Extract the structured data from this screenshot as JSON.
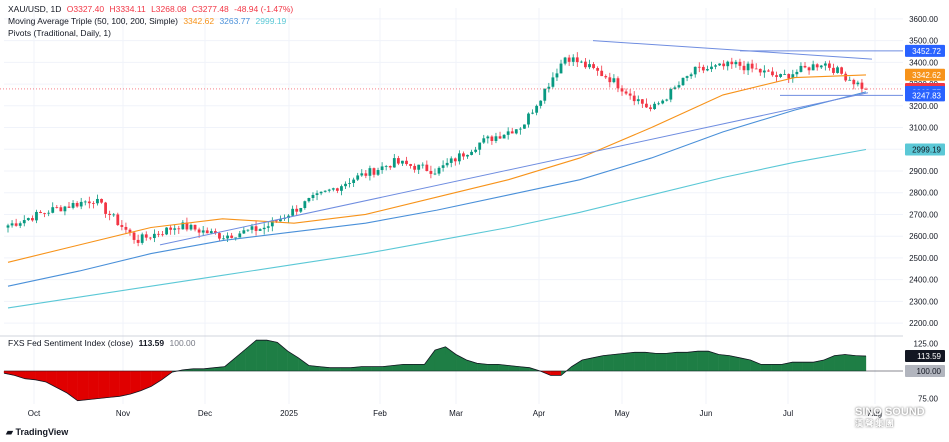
{
  "legend": {
    "symbol": "XAU/USD, 1D",
    "open": "O3327.40",
    "high": "H3334.11",
    "low": "L3268.08",
    "close": "C3277.48",
    "change": "-48.94 (-1.47%)",
    "ma_label": "Moving Average Triple (50, 100, 200, Simple)",
    "ma50": "3342.62",
    "ma100": "3263.77",
    "ma200": "2999.19",
    "pivots": "Pivots (Traditional, Daily, 1)",
    "sentiment_label": "FXS Fed Sentiment Index (close)",
    "sentiment_value": "113.59",
    "sentiment_base": "100.00"
  },
  "branding": {
    "tradingview": "TradingView",
    "watermark": "SINO SOUND",
    "watermark_sub": "漢 聲 集 團"
  },
  "colors": {
    "up": "#089981",
    "down": "#f23645",
    "ma50": "#f7931a",
    "ma100": "#4a90d9",
    "ma200": "#5bc8d6",
    "trend": "#6f8de0",
    "sentiment_pos": "#1e7e45",
    "sentiment_neg": "#e00000"
  },
  "chart_data": [
    {
      "type": "candlestick",
      "symbol": "XAU/USD",
      "timeframe": "1D",
      "x_tick_labels": [
        "Oct",
        "Nov",
        "Dec",
        "2025",
        "Feb",
        "Mar",
        "Apr",
        "May",
        "Jun",
        "Jul",
        "Aug"
      ],
      "y_ticks": [
        2200,
        2300,
        2400,
        2500,
        2600,
        2700,
        2800,
        2900,
        3000,
        3100,
        3200,
        3300,
        3400,
        3500,
        3600
      ],
      "ylim": [
        2150,
        3650
      ],
      "close_anchors": [
        {
          "month": "Oct",
          "value": 2650
        },
        {
          "month": "Oct",
          "value": 2720
        },
        {
          "month": "Nov",
          "value": 2770
        },
        {
          "month": "Nov",
          "value": 2580
        },
        {
          "month": "Dec",
          "value": 2650
        },
        {
          "month": "Dec",
          "value": 2600
        },
        {
          "month": "2025",
          "value": 2640
        },
        {
          "month": "2025",
          "value": 2760
        },
        {
          "month": "Feb",
          "value": 2860
        },
        {
          "month": "Feb",
          "value": 2940
        },
        {
          "month": "Mar",
          "value": 2900
        },
        {
          "month": "Mar",
          "value": 3030
        },
        {
          "month": "Apr",
          "value": 3110
        },
        {
          "month": "Apr",
          "value": 3430
        },
        {
          "month": "May",
          "value": 3330
        },
        {
          "month": "May",
          "value": 3180
        },
        {
          "month": "Jun",
          "value": 3360
        },
        {
          "month": "Jun",
          "value": 3390
        },
        {
          "month": "Jul",
          "value": 3330
        },
        {
          "month": "Jul",
          "value": 3400
        },
        {
          "month": "Aug",
          "value": 3277
        }
      ],
      "moving_averages": [
        {
          "name": "MA 50",
          "last": 3342.62,
          "points": [
            2480,
            2560,
            2640,
            2680,
            2660,
            2700,
            2780,
            2860,
            2960,
            3100,
            3250,
            3330,
            3342
          ]
        },
        {
          "name": "MA 100",
          "last": 3263.77,
          "points": [
            2370,
            2440,
            2520,
            2580,
            2620,
            2660,
            2720,
            2790,
            2860,
            2960,
            3080,
            3180,
            3264
          ]
        },
        {
          "name": "MA 200",
          "last": 2999.19,
          "points": [
            2270,
            2320,
            2370,
            2420,
            2470,
            2520,
            2580,
            2640,
            2710,
            2790,
            2870,
            2940,
            2999
          ]
        }
      ],
      "trendlines": [
        {
          "name": "upper",
          "from": 3500,
          "to": 3415
        },
        {
          "name": "lower",
          "from": 2560,
          "to": 3260
        }
      ],
      "horizontal_levels": [
        3452.72,
        3247.83,
        3277.48
      ],
      "price_labels": [
        {
          "text": "3452.72",
          "value": 3452.72,
          "style": "blue"
        },
        {
          "text": "3342.62",
          "value": 3342.62,
          "style": "orange"
        },
        {
          "text": "3277.48",
          "value": 3277.48,
          "style": "red"
        },
        {
          "text": "3263.77",
          "value": 3263.77,
          "style": "blue"
        },
        {
          "text": "3247.83",
          "value": 3247.83,
          "style": "blue"
        },
        {
          "text": "2999.19",
          "value": 2999.19,
          "style": "cyan"
        }
      ]
    },
    {
      "type": "area",
      "title": "FXS Fed Sentiment Index (close)",
      "y_ticks": [
        75,
        100,
        125
      ],
      "ylim": [
        70,
        130
      ],
      "baseline": 100,
      "values": [
        98,
        96,
        93,
        92,
        90,
        85,
        80,
        73,
        74,
        75,
        76,
        77,
        79,
        82,
        86,
        92,
        99,
        101,
        102,
        102,
        103,
        104,
        112,
        120,
        128,
        128,
        126,
        118,
        112,
        105,
        104,
        103,
        103,
        103,
        104,
        104,
        104,
        105,
        106,
        106,
        106,
        119,
        122,
        115,
        110,
        107,
        106,
        106,
        105,
        104,
        103,
        100,
        96,
        96,
        104,
        110,
        112,
        114,
        115,
        116,
        117,
        117,
        116,
        116,
        117,
        117,
        118,
        118,
        115,
        114,
        112,
        110,
        106,
        106,
        106,
        108,
        108,
        108,
        110,
        114,
        115,
        114,
        113.59
      ],
      "price_labels": [
        {
          "text": "113.59",
          "value": 113.59,
          "style": "dark"
        },
        {
          "text": "100.00",
          "value": 100,
          "style": "grey"
        }
      ]
    }
  ]
}
